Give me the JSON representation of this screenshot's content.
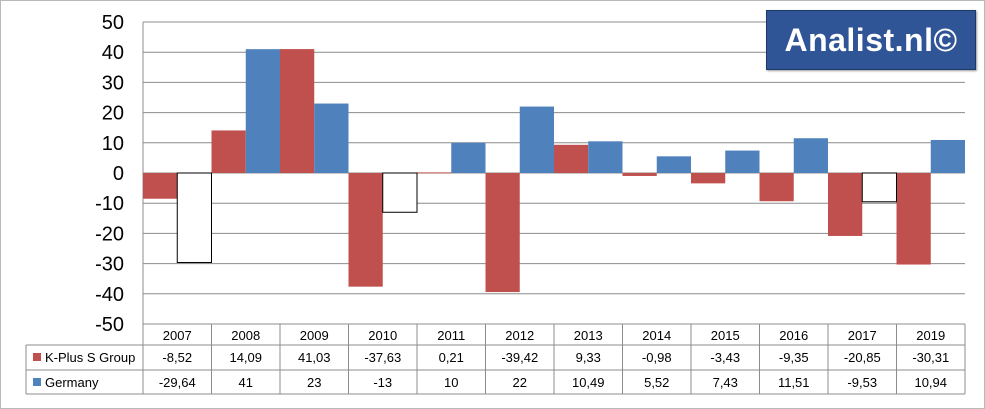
{
  "logo": {
    "text": "Analist.nl©"
  },
  "chart_data": {
    "type": "bar",
    "categories": [
      "2007",
      "2008",
      "2009",
      "2010",
      "2011",
      "2012",
      "2013",
      "2014",
      "2015",
      "2016",
      "2017",
      "2019"
    ],
    "series": [
      {
        "name": "K-Plus S Group",
        "color": "#c0504d",
        "values": [
          -8.52,
          14.09,
          41.03,
          -37.63,
          0.21,
          -39.42,
          9.33,
          -0.98,
          -3.43,
          -9.35,
          -20.85,
          -30.31
        ],
        "labels": [
          "-8,52",
          "14,09",
          "41,03",
          "-37,63",
          "0,21",
          "-39,42",
          "9,33",
          "-0,98",
          "-3,43",
          "-9,35",
          "-20,85",
          "-30,31"
        ]
      },
      {
        "name": "Germany",
        "color": "#4f81bd",
        "negative_fill": "#ffffff",
        "values": [
          -29.64,
          41,
          23,
          -13,
          10,
          22,
          10.49,
          5.52,
          7.43,
          11.51,
          -9.53,
          10.94
        ],
        "labels": [
          "-29,64",
          "41",
          "23",
          "-13",
          "10",
          "22",
          "10,49",
          "5,52",
          "7,43",
          "11,51",
          "-9,53",
          "10,94"
        ]
      }
    ],
    "ylim": [
      -50,
      50
    ],
    "yticks": [
      "50",
      "40",
      "30",
      "20",
      "10",
      "0",
      "-10",
      "-20",
      "-30",
      "-40",
      "-50"
    ],
    "grid": true,
    "data_table": true
  }
}
